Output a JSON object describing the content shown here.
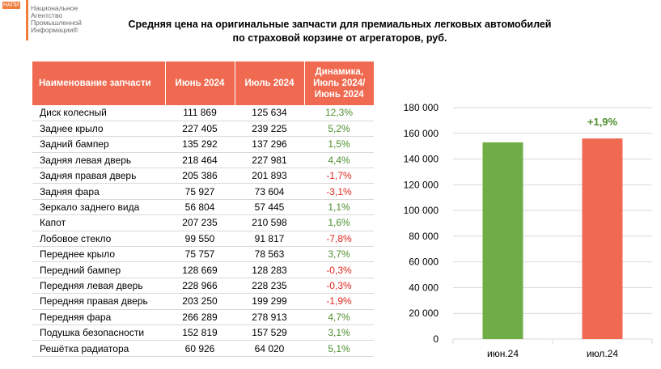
{
  "logo": {
    "abbr": "НАПИ",
    "text": "Национальное\nАгентство\nПромышленной\nИнформации®"
  },
  "title": {
    "line1": "Средняя цена на оригинальные запчасти для премиальных легковых автомобилей",
    "line2": "по страховой корзине от агрегаторов, руб."
  },
  "table": {
    "headers": [
      "Наименование запчасти",
      "Июнь 2024",
      "Июль 2024",
      "Динамика, Июль 2024/ Июнь 2024"
    ],
    "rows": [
      {
        "name": "Диск колесный",
        "jun": "111 869",
        "jul": "125 634",
        "dyn": "12,3%",
        "sign": "pos"
      },
      {
        "name": "Заднее крыло",
        "jun": "227 405",
        "jul": "239 225",
        "dyn": "5,2%",
        "sign": "pos"
      },
      {
        "name": "Задний бампер",
        "jun": "135 292",
        "jul": "137 296",
        "dyn": "1,5%",
        "sign": "pos"
      },
      {
        "name": "Задняя левая дверь",
        "jun": "218 464",
        "jul": "227 981",
        "dyn": "4,4%",
        "sign": "pos"
      },
      {
        "name": "Задняя правая дверь",
        "jun": "205 386",
        "jul": "201 893",
        "dyn": "-1,7%",
        "sign": "neg"
      },
      {
        "name": "Задняя фара",
        "jun": "75 927",
        "jul": "73 604",
        "dyn": "-3,1%",
        "sign": "neg"
      },
      {
        "name": "Зеркало заднего вида",
        "jun": "56 804",
        "jul": "57 445",
        "dyn": "1,1%",
        "sign": "pos"
      },
      {
        "name": "Капот",
        "jun": "207 235",
        "jul": "210 598",
        "dyn": "1,6%",
        "sign": "pos"
      },
      {
        "name": "Лобовое стекло",
        "jun": "99 550",
        "jul": "91 817",
        "dyn": "-7,8%",
        "sign": "neg"
      },
      {
        "name": "Переднее крыло",
        "jun": "75 757",
        "jul": "78 563",
        "dyn": "3,7%",
        "sign": "pos"
      },
      {
        "name": "Передний бампер",
        "jun": "128 669",
        "jul": "128 283",
        "dyn": "-0,3%",
        "sign": "neg"
      },
      {
        "name": "Передняя левая дверь",
        "jun": "228 966",
        "jul": "228 235",
        "dyn": "-0,3%",
        "sign": "neg"
      },
      {
        "name": "Передняя правая дверь",
        "jun": "203 250",
        "jul": "199 299",
        "dyn": "-1,9%",
        "sign": "neg"
      },
      {
        "name": "Передняя фара",
        "jun": "266 289",
        "jul": "278 913",
        "dyn": "4,7%",
        "sign": "pos"
      },
      {
        "name": "Подушка безопасности",
        "jun": "152 819",
        "jul": "157 529",
        "dyn": "3,1%",
        "sign": "pos"
      },
      {
        "name": "Решётка радиатора",
        "jun": "60 926",
        "jul": "64 020",
        "dyn": "5,1%",
        "sign": "pos"
      }
    ]
  },
  "colors": {
    "accent": "#ef6a50",
    "bar_jun": "#70ad47",
    "bar_jul": "#ef6a50",
    "positive": "#4e8f2e",
    "negative": "#e0261c"
  },
  "chart_data": {
    "type": "bar",
    "title": "",
    "categories": [
      "июн.24",
      "июл.24"
    ],
    "values": [
      153000,
      156000
    ],
    "colors": [
      "#70ad47",
      "#ef6a50"
    ],
    "ylim": [
      0,
      180000
    ],
    "yticks": [
      0,
      20000,
      40000,
      60000,
      80000,
      100000,
      120000,
      140000,
      160000,
      180000
    ],
    "ytick_labels": [
      "0",
      "20 000",
      "40 000",
      "60 000",
      "80 000",
      "100 000",
      "120 000",
      "140 000",
      "160 000",
      "180 000"
    ],
    "annotation": "+1,9%",
    "xlabel": "",
    "ylabel": ""
  }
}
